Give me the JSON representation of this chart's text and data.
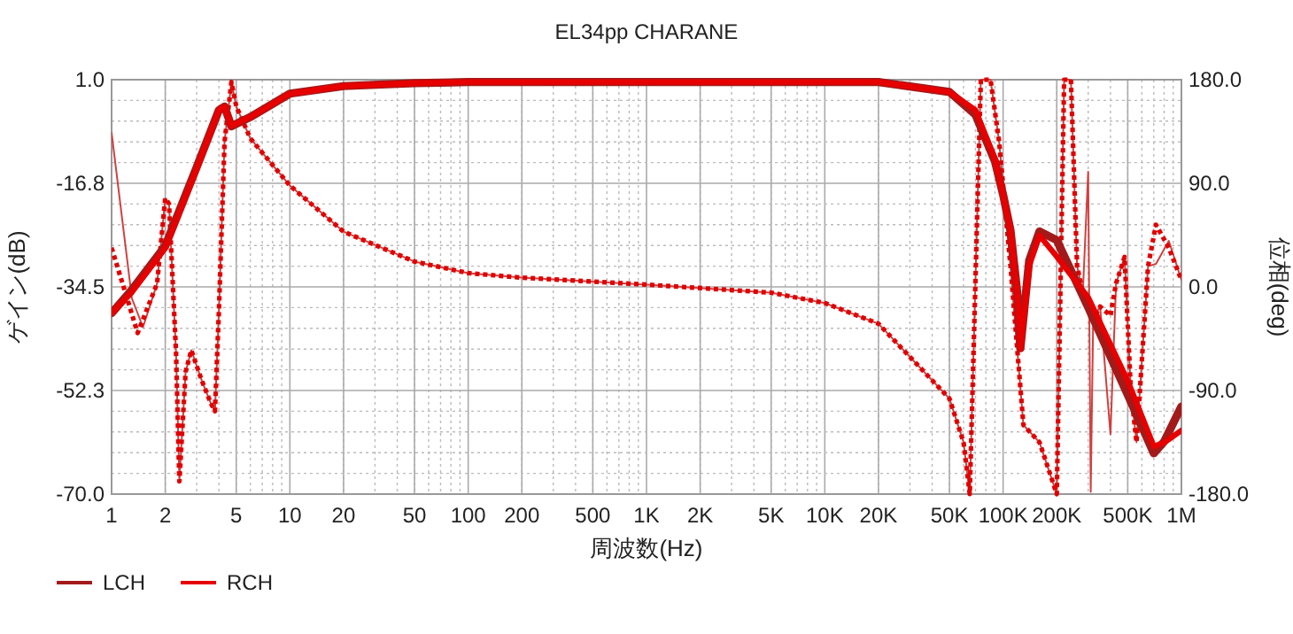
{
  "chart_data": {
    "type": "line",
    "title": "EL34pp CHARANE",
    "xlabel": "周波数(Hz)",
    "ylabel": "ゲイン(dB)",
    "y2label": "位相(deg)",
    "log": "x",
    "grid": true,
    "legend": "bottom left",
    "xlim": [
      1,
      1000000
    ],
    "xticks": [
      1,
      2,
      5,
      10,
      20,
      50,
      100,
      200,
      500,
      {
        "value": 1000,
        "label": "1K"
      },
      {
        "value": 2000,
        "label": "2K"
      },
      {
        "value": 5000,
        "label": "5K"
      },
      {
        "value": 10000,
        "label": "10K"
      },
      {
        "value": 20000,
        "label": "20K"
      },
      {
        "value": 50000,
        "label": "50K"
      },
      {
        "value": 100000,
        "label": "100K"
      },
      {
        "value": 200000,
        "label": "200K"
      },
      {
        "value": 500000,
        "label": "500K"
      },
      {
        "value": 1000000,
        "label": "1M"
      }
    ],
    "ylim": [
      -70,
      1
    ],
    "yticks": [
      {
        "value": 1,
        "label": "1.0"
      },
      {
        "value": -16.75,
        "label": "-16.8"
      },
      {
        "value": -34.5,
        "label": "-34.5"
      },
      {
        "value": -52.25,
        "label": "-52.3"
      },
      {
        "value": -70,
        "label": "-70.0"
      }
    ],
    "y2lim": [
      -180,
      180
    ],
    "y2ticks": [
      {
        "value": 180,
        "label": "180.0"
      },
      {
        "value": 90,
        "label": "90.0"
      },
      {
        "value": 0,
        "label": "0.0"
      },
      {
        "value": -90,
        "label": "-90.0"
      },
      {
        "value": -180,
        "label": "-180.0"
      }
    ],
    "series": [
      {
        "name": "LCH",
        "color": "#a31a1a",
        "line_style": "solid",
        "x": [
          1,
          1.3,
          2,
          3,
          4,
          4.3,
          4.7,
          6,
          10,
          20,
          50,
          100,
          1000,
          20000,
          50000,
          70000,
          90000,
          100000,
          110000,
          120000,
          125000,
          140000,
          160000,
          200000,
          300000,
          500000,
          700000,
          800000,
          1000000
        ],
        "values": [
          -39,
          -35,
          -27.5,
          -14,
          -4.2,
          -3.6,
          -7,
          -5.4,
          -1.4,
          -0.1,
          0.4,
          0.6,
          0.6,
          0.6,
          -1.1,
          -5,
          -13,
          -18.7,
          -24.8,
          -35.4,
          -45,
          -30,
          -25,
          -26.5,
          -38,
          -53,
          -63,
          -61,
          -55
        ]
      },
      {
        "name": "RCH",
        "color": "#e60000",
        "line_style": "solid",
        "x": [
          1,
          1.3,
          2,
          3,
          4,
          4.3,
          4.7,
          6,
          10,
          20,
          50,
          100,
          1000,
          20000,
          50000,
          70000,
          90000,
          100000,
          110000,
          120000,
          125000,
          140000,
          160000,
          200000,
          300000,
          500000,
          700000,
          800000,
          1000000
        ],
        "values": [
          -39,
          -35.4,
          -27.8,
          -14.2,
          -4.2,
          -3.6,
          -6.9,
          -5.4,
          -1.4,
          -0.1,
          0.4,
          0.6,
          0.6,
          0.6,
          -1.1,
          -4.2,
          -12.7,
          -18.7,
          -24.8,
          -35.4,
          -45.1,
          -30.9,
          -25.7,
          -29.3,
          -36.3,
          -50.6,
          -61.8,
          -61.2,
          -59.1
        ]
      },
      {
        "color": "#d04040",
        "line_style": "solid",
        "axis": "y2",
        "x": [
          1,
          1.3,
          1.5,
          1.8,
          2,
          2.1,
          2.3,
          2.4,
          2.6,
          2.8,
          3.2,
          3.6,
          3.8,
          4,
          4.3,
          4.7,
          5,
          6,
          10,
          20,
          50,
          100,
          200,
          1000,
          5000,
          10000,
          20000,
          50000,
          60000,
          65000,
          75000,
          85000,
          95000,
          110000,
          130000,
          160000,
          200000,
          220000,
          240000,
          260000,
          280000,
          300000,
          310000,
          320000,
          350000,
          400000,
          430000,
          480000,
          520000,
          560000,
          650000,
          720000,
          850000,
          1000000
        ],
        "values": [
          134,
          -10,
          -35,
          3,
          77,
          72,
          -58,
          -169,
          -74,
          -55,
          -81,
          -101,
          -108,
          -20,
          126,
          178,
          157,
          129,
          88,
          48,
          22,
          12,
          8,
          2,
          -5,
          -14,
          -32,
          -97,
          -135,
          -180,
          180,
          180,
          126,
          18,
          -120,
          -135,
          -180,
          180,
          180,
          18,
          -5,
          100,
          -178,
          -28,
          -17,
          -128,
          3,
          26,
          -89,
          -135,
          18,
          20,
          40,
          6
        ]
      },
      {
        "color": "#e00000",
        "line_style": "dotted",
        "axis": "y2",
        "x": [
          1,
          1.4,
          1.8,
          2,
          2.1,
          2.3,
          2.4,
          2.6,
          2.8,
          3.2,
          3.6,
          3.8,
          4,
          4.3,
          4.7,
          5,
          6,
          10,
          20,
          50,
          100,
          200,
          1000,
          5000,
          10000,
          20000,
          50000,
          60000,
          65000,
          75000,
          85000,
          95000,
          110000,
          130000,
          160000,
          200000,
          220000,
          240000,
          260000,
          280000,
          320000,
          350000,
          400000,
          430000,
          480000,
          520000,
          560000,
          650000,
          720000,
          850000,
          1000000
        ],
        "values": [
          34,
          -40,
          3,
          77,
          72,
          -58,
          -169,
          -74,
          -55,
          -81,
          -101,
          -108,
          -20,
          126,
          178,
          157,
          129,
          88,
          48,
          22,
          12,
          8,
          2,
          -5,
          -14,
          -32,
          -97,
          -135,
          -180,
          180,
          180,
          126,
          18,
          -120,
          -135,
          -180,
          180,
          180,
          18,
          -5,
          -28,
          -17,
          -25,
          3,
          26,
          -89,
          -135,
          18,
          54,
          34,
          6
        ]
      }
    ]
  }
}
